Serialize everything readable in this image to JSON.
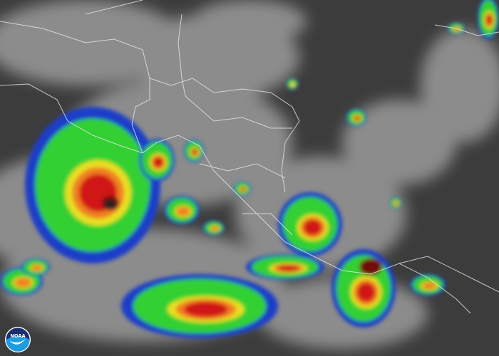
{
  "image": {
    "kind": "infrared satellite imagery",
    "logo_text": "NOAA"
  },
  "colors": {
    "ocean": "#3c3c3c",
    "cloud": "#8c8c8c",
    "border": "#e8e8e8",
    "cold_top_blue": "#1e3cc8",
    "cold_top_cyan": "#40c8e8",
    "green": "#30d030",
    "yellow": "#e8e020",
    "orange": "#f08020",
    "red": "#d01818",
    "dark_red": "#701010",
    "noaa_blue": "#1d9ce0",
    "noaa_navy": "#1a2f6e"
  }
}
